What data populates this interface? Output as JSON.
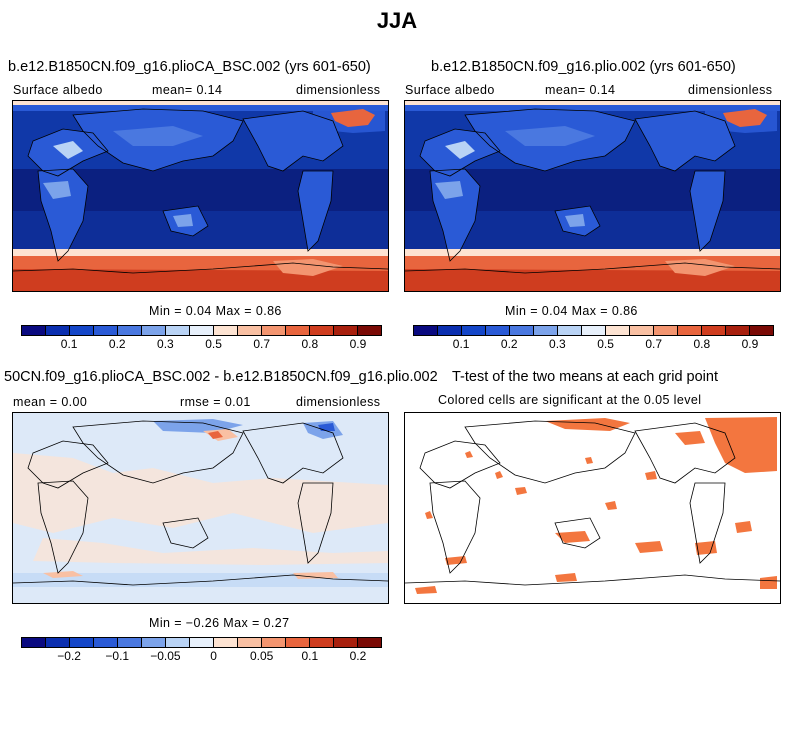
{
  "figure": {
    "title": "JJA"
  },
  "panels": {
    "top_left": {
      "title": "b.e12.B1850CN.f09_g16.plioCA_BSC.002 (yrs 601-650)",
      "left_label": "Surface albedo",
      "center_label": "mean=    0.14",
      "right_label": "dimensionless",
      "minmax": "Min =    0.04 Max =    0.86"
    },
    "top_right": {
      "title": "b.e12.B1850CN.f09_g16.plio.002 (yrs 601-650)",
      "left_label": "Surface albedo",
      "center_label": "mean=    0.14",
      "right_label": "dimensionless",
      "minmax": "Min =    0.04 Max =    0.86"
    },
    "bottom_left": {
      "title": "50CN.f09_g16.plioCA_BSC.002 - b.e12.B1850CN.f09_g16.plio.002",
      "left_label": "mean =    0.00",
      "center_label": "rmse =    0.01",
      "right_label": "dimensionless",
      "minmax": "Min =   −0.26 Max =    0.27"
    },
    "bottom_right": {
      "title": "T-test of the two means at each grid point",
      "subtitle": "Colored cells are significant at the 0.05 level"
    }
  },
  "colorbars": {
    "albedo": {
      "colors": [
        "#0a0a80",
        "#0b2fb0",
        "#1446c8",
        "#2a5ad6",
        "#4a78e0",
        "#7ca3ea",
        "#b9d3f5",
        "#e7f0fb",
        "#fde3d2",
        "#f9c0a3",
        "#f39570",
        "#e8653e",
        "#cf3d1f",
        "#a8200e",
        "#7a0a05"
      ],
      "ticks": [
        "0.1",
        "0.2",
        "0.3",
        "0.5",
        "0.7",
        "0.8",
        "0.9"
      ]
    },
    "difference": {
      "colors": [
        "#0a0a80",
        "#0b2fb0",
        "#1446c8",
        "#2a5ad6",
        "#4a78e0",
        "#7ca3ea",
        "#b9d3f5",
        "#e7f0fb",
        "#fde3d2",
        "#f9c0a3",
        "#f39570",
        "#e8653e",
        "#cf3d1f",
        "#a8200e",
        "#7a0a05"
      ],
      "ticks": [
        "−0.2",
        "−0.1",
        "−0.05",
        "0",
        "0.05",
        "0.1",
        "0.2"
      ]
    }
  },
  "colors": {
    "ocean_deep": "#0b2080",
    "ocean_mid": "#1038a8",
    "land": "#2a5ad6",
    "land_bright": "#7ca3ea",
    "ice_south": "#e8653e",
    "ice_north": "#f9c0a3",
    "diff_bg": "#dde9f8",
    "diff_pos": "#fde3d2",
    "ttest": "#f3763f"
  }
}
